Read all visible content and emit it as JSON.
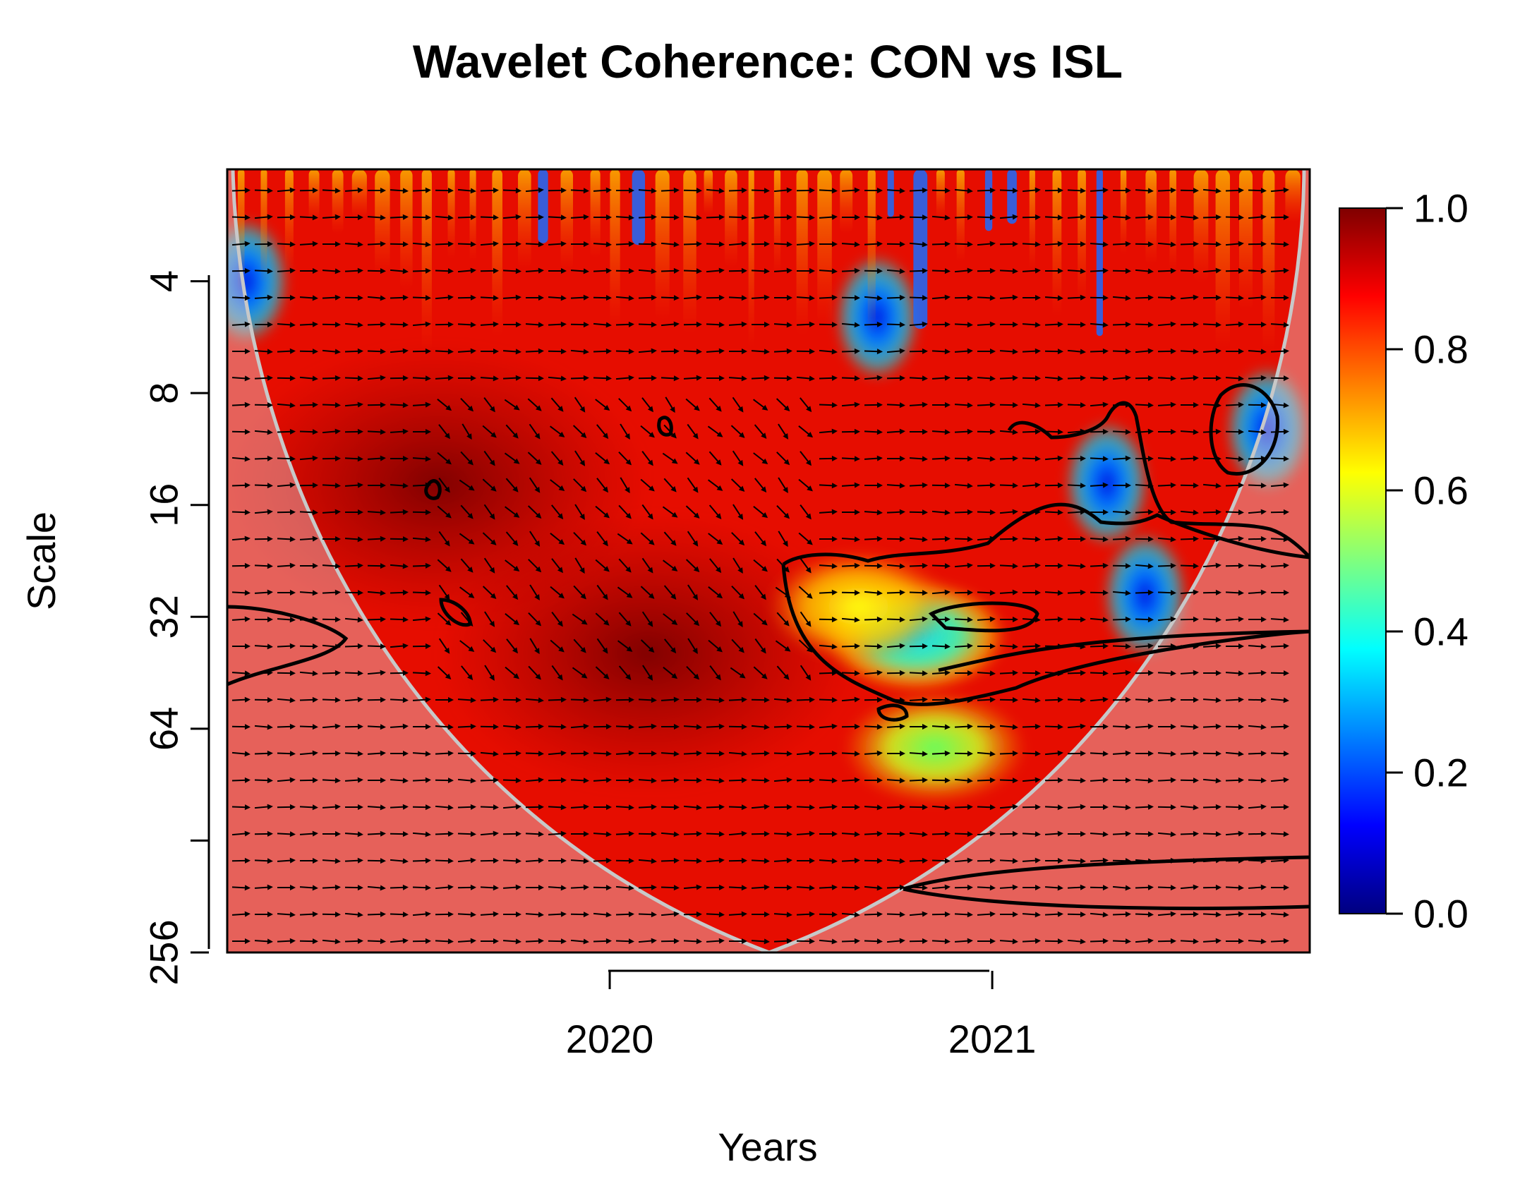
{
  "chart_data": {
    "type": "heatmap",
    "title": "Wavelet Coherence: CON vs ISL",
    "xlabel": "Years",
    "ylabel": "Scale",
    "x_ticks": [
      {
        "label": "2020",
        "value": 2020
      },
      {
        "label": "2021",
        "value": 2021
      }
    ],
    "xlim": [
      2019.0,
      2021.83
    ],
    "y_scale": "log2",
    "y_ticks": [
      {
        "label": "4",
        "value": 4
      },
      {
        "label": "8",
        "value": 8
      },
      {
        "label": "16",
        "value": 16
      },
      {
        "label": "32",
        "value": 32
      },
      {
        "label": "64",
        "value": 64
      },
      {
        "label": "",
        "value": 128
      },
      {
        "label": "256",
        "value": 256
      }
    ],
    "ylim": [
      2,
      256
    ],
    "colorbar": {
      "ticks": [
        {
          "label": "0.0",
          "value": 0.0
        },
        {
          "label": "0.2",
          "value": 0.2
        },
        {
          "label": "0.4",
          "value": 0.4
        },
        {
          "label": "0.6",
          "value": 0.6
        },
        {
          "label": "0.8",
          "value": 0.8
        },
        {
          "label": "1.0",
          "value": 1.0
        }
      ],
      "range": [
        0,
        1
      ],
      "colors": [
        "#00007f",
        "#0000ff",
        "#007fff",
        "#00ffff",
        "#7fff7f",
        "#ffff00",
        "#ff7f00",
        "#ff0000",
        "#7f0000"
      ]
    },
    "coherence_regions": [
      {
        "name": "high-coherence-center",
        "x": 2020.1,
        "scale": 40,
        "value": 0.98
      },
      {
        "name": "high-coherence-left",
        "x": 2019.55,
        "scale": 14,
        "value": 0.93
      },
      {
        "name": "low-coherence-1",
        "x": 2021.3,
        "scale": 14,
        "value": 0.2
      },
      {
        "name": "low-coherence-2",
        "x": 2021.4,
        "scale": 28,
        "value": 0.3
      },
      {
        "name": "low-coherence-3",
        "x": 2020.8,
        "scale": 36,
        "value": 0.45
      },
      {
        "name": "low-coherence-4",
        "x": 2021.72,
        "scale": 10,
        "value": 0.3
      },
      {
        "name": "mid-coherence-1",
        "x": 2020.65,
        "scale": 30,
        "value": 0.72
      },
      {
        "name": "mid-coherence-2",
        "x": 2020.85,
        "scale": 72,
        "value": 0.58
      },
      {
        "name": "low-coherence-5",
        "x": 2020.7,
        "scale": 5,
        "value": 0.2
      },
      {
        "name": "low-coherence-6",
        "x": 2019.05,
        "scale": 4,
        "value": 0.3
      }
    ],
    "phase_arrows": "mostly right-pointing (in-phase), with downward-right arrows around 2019.6-2020.5 at scales 16-64",
    "cone_of_influence": true,
    "significance_contours": true
  }
}
